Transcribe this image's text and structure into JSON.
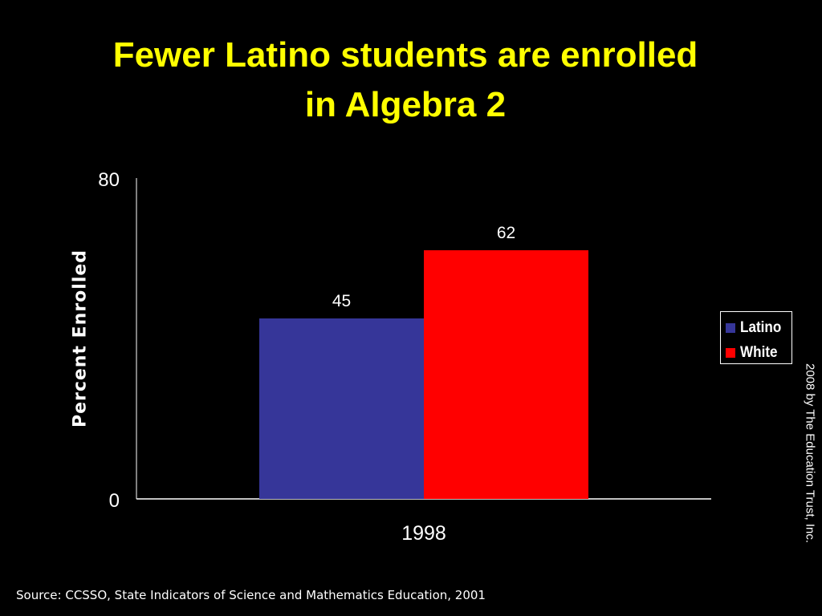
{
  "slide": {
    "title_line1": "Fewer Latino students are enrolled",
    "title_line2": "in Algebra 2",
    "credit": "2008 by The Education Trust, Inc.",
    "source": "Source: CCSSO, State Indicators of Science and Mathematics Education, 2001"
  },
  "colors": {
    "background": "#000000",
    "title": "#ffff00",
    "latino": "#363699",
    "white": "#ff0000"
  },
  "chart_data": {
    "type": "bar",
    "title": "Fewer Latino students are enrolled in Algebra 2",
    "xlabel": "",
    "ylabel": "Percent Enrolled",
    "categories": [
      "1998"
    ],
    "series": [
      {
        "name": "Latino",
        "values": [
          45
        ],
        "color": "#363699"
      },
      {
        "name": "White",
        "values": [
          62
        ],
        "color": "#ff0000"
      }
    ],
    "ylim": [
      0,
      80
    ],
    "yticks": [
      "0",
      "80"
    ],
    "data_labels": true,
    "grid": false,
    "legend_position": "right"
  }
}
